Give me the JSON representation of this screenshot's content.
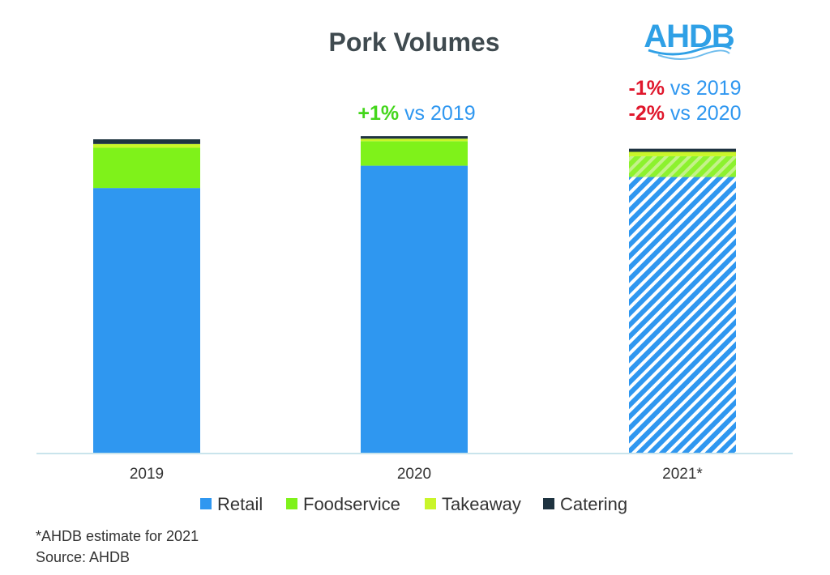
{
  "chart_data": {
    "type": "bar",
    "stacked": true,
    "title": "Pork Volumes",
    "xlabel": "",
    "ylabel": "",
    "ylim": [
      0,
      100
    ],
    "grid": false,
    "legend_position": "bottom",
    "categories": [
      "2019",
      "2020",
      "2021*"
    ],
    "estimated": [
      false,
      false,
      true
    ],
    "series": [
      {
        "name": "Retail",
        "color": "#2f97f0",
        "values": [
          84.5,
          91.6,
          88.0
        ]
      },
      {
        "name": "Foodservice",
        "color": "#7ff21a",
        "values": [
          12.8,
          7.8,
          6.6
        ]
      },
      {
        "name": "Takeaway",
        "color": "#c9f52a",
        "values": [
          1.2,
          0.8,
          1.4
        ]
      },
      {
        "name": "Catering",
        "color": "#1e3340",
        "values": [
          1.5,
          0.8,
          1.0
        ]
      }
    ],
    "annotations": [
      {
        "category": "2020",
        "lines": [
          {
            "pct": "+1%",
            "pct_color": "#44d61c",
            "rest": " vs 2019"
          }
        ]
      },
      {
        "category": "2021*",
        "lines": [
          {
            "pct": "-1%",
            "pct_color": "#e0182d",
            "rest": " vs 2019"
          },
          {
            "pct": "-2%",
            "pct_color": "#e0182d",
            "rest": " vs 2020"
          }
        ]
      }
    ]
  },
  "logo": {
    "text": "AHDB",
    "color": "#2fa0e6"
  },
  "footnotes": {
    "estimate": "*AHDB estimate for 2021",
    "source": "Source: AHDB"
  },
  "colors": {
    "text_accent": "#2f97f0",
    "axis": "#c9e4ec"
  }
}
